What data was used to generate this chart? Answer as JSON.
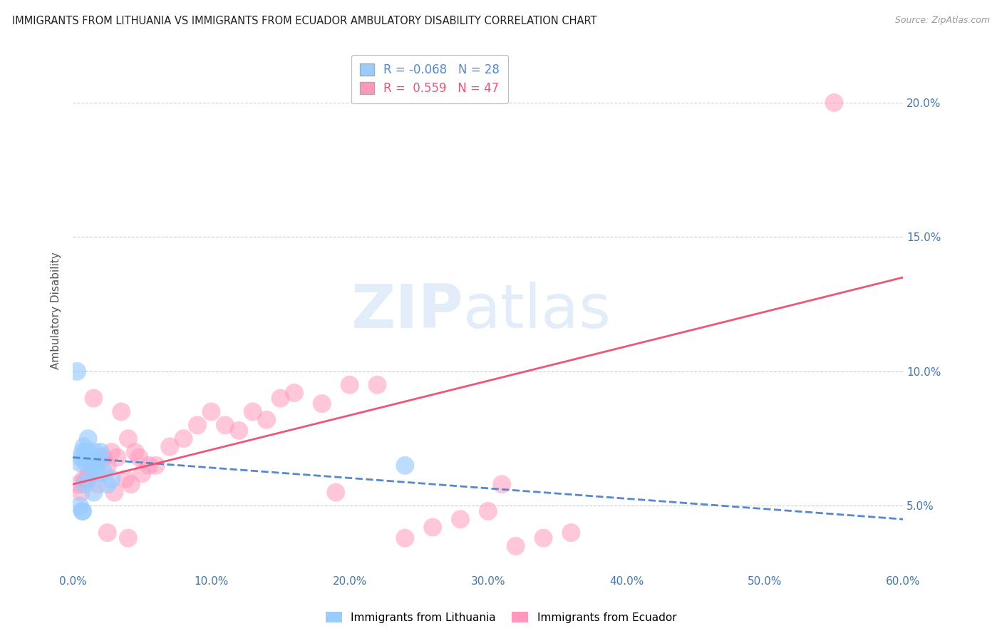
{
  "title": "IMMIGRANTS FROM LITHUANIA VS IMMIGRANTS FROM ECUADOR AMBULATORY DISABILITY CORRELATION CHART",
  "source": "Source: ZipAtlas.com",
  "ylabel": "Ambulatory Disability",
  "legend_label1": "Immigrants from Lithuania",
  "legend_label2": "Immigrants from Ecuador",
  "R1": -0.068,
  "N1": 28,
  "R2": 0.559,
  "N2": 47,
  "color1": "#99CCFF",
  "color2": "#FF99BB",
  "trend1_color": "#5588CC",
  "trend2_color": "#EE5577",
  "xlim": [
    0.0,
    0.6
  ],
  "ylim": [
    0.025,
    0.22
  ],
  "xtick_vals": [
    0.0,
    0.1,
    0.2,
    0.3,
    0.4,
    0.5,
    0.6
  ],
  "ytick_vals": [
    0.05,
    0.1,
    0.15,
    0.2
  ],
  "ytick_labels": [
    "5.0%",
    "10.0%",
    "15.0%",
    "20.0%"
  ],
  "watermark_zip": "ZIP",
  "watermark_atlas": "atlas",
  "lithuania_x": [
    0.003,
    0.005,
    0.006,
    0.007,
    0.008,
    0.009,
    0.01,
    0.011,
    0.012,
    0.013,
    0.014,
    0.015,
    0.016,
    0.017,
    0.018,
    0.019,
    0.02,
    0.022,
    0.025,
    0.028,
    0.005,
    0.007,
    0.01,
    0.008,
    0.012,
    0.015,
    0.24,
    0.007
  ],
  "lithuania_y": [
    0.1,
    0.066,
    0.068,
    0.07,
    0.072,
    0.066,
    0.068,
    0.075,
    0.069,
    0.067,
    0.065,
    0.068,
    0.07,
    0.065,
    0.062,
    0.068,
    0.07,
    0.063,
    0.058,
    0.06,
    0.05,
    0.048,
    0.07,
    0.058,
    0.06,
    0.055,
    0.065,
    0.048
  ],
  "ecuador_x": [
    0.004,
    0.006,
    0.008,
    0.01,
    0.012,
    0.015,
    0.018,
    0.02,
    0.022,
    0.025,
    0.028,
    0.03,
    0.032,
    0.035,
    0.038,
    0.04,
    0.042,
    0.045,
    0.048,
    0.05,
    0.055,
    0.06,
    0.07,
    0.08,
    0.09,
    0.1,
    0.11,
    0.12,
    0.13,
    0.14,
    0.15,
    0.16,
    0.18,
    0.2,
    0.22,
    0.24,
    0.26,
    0.28,
    0.3,
    0.32,
    0.34,
    0.36,
    0.025,
    0.04,
    0.19,
    0.31,
    0.55
  ],
  "ecuador_y": [
    0.058,
    0.055,
    0.06,
    0.06,
    0.062,
    0.09,
    0.058,
    0.068,
    0.068,
    0.065,
    0.07,
    0.055,
    0.068,
    0.085,
    0.06,
    0.075,
    0.058,
    0.07,
    0.068,
    0.062,
    0.065,
    0.065,
    0.072,
    0.075,
    0.08,
    0.085,
    0.08,
    0.078,
    0.085,
    0.082,
    0.09,
    0.092,
    0.088,
    0.095,
    0.095,
    0.038,
    0.042,
    0.045,
    0.048,
    0.035,
    0.038,
    0.04,
    0.04,
    0.038,
    0.055,
    0.058,
    0.2
  ],
  "trend1_x_start": 0.0,
  "trend1_x_end": 0.6,
  "trend1_y_start": 0.068,
  "trend1_y_end": 0.045,
  "trend2_x_start": 0.0,
  "trend2_x_end": 0.6,
  "trend2_y_start": 0.058,
  "trend2_y_end": 0.135
}
